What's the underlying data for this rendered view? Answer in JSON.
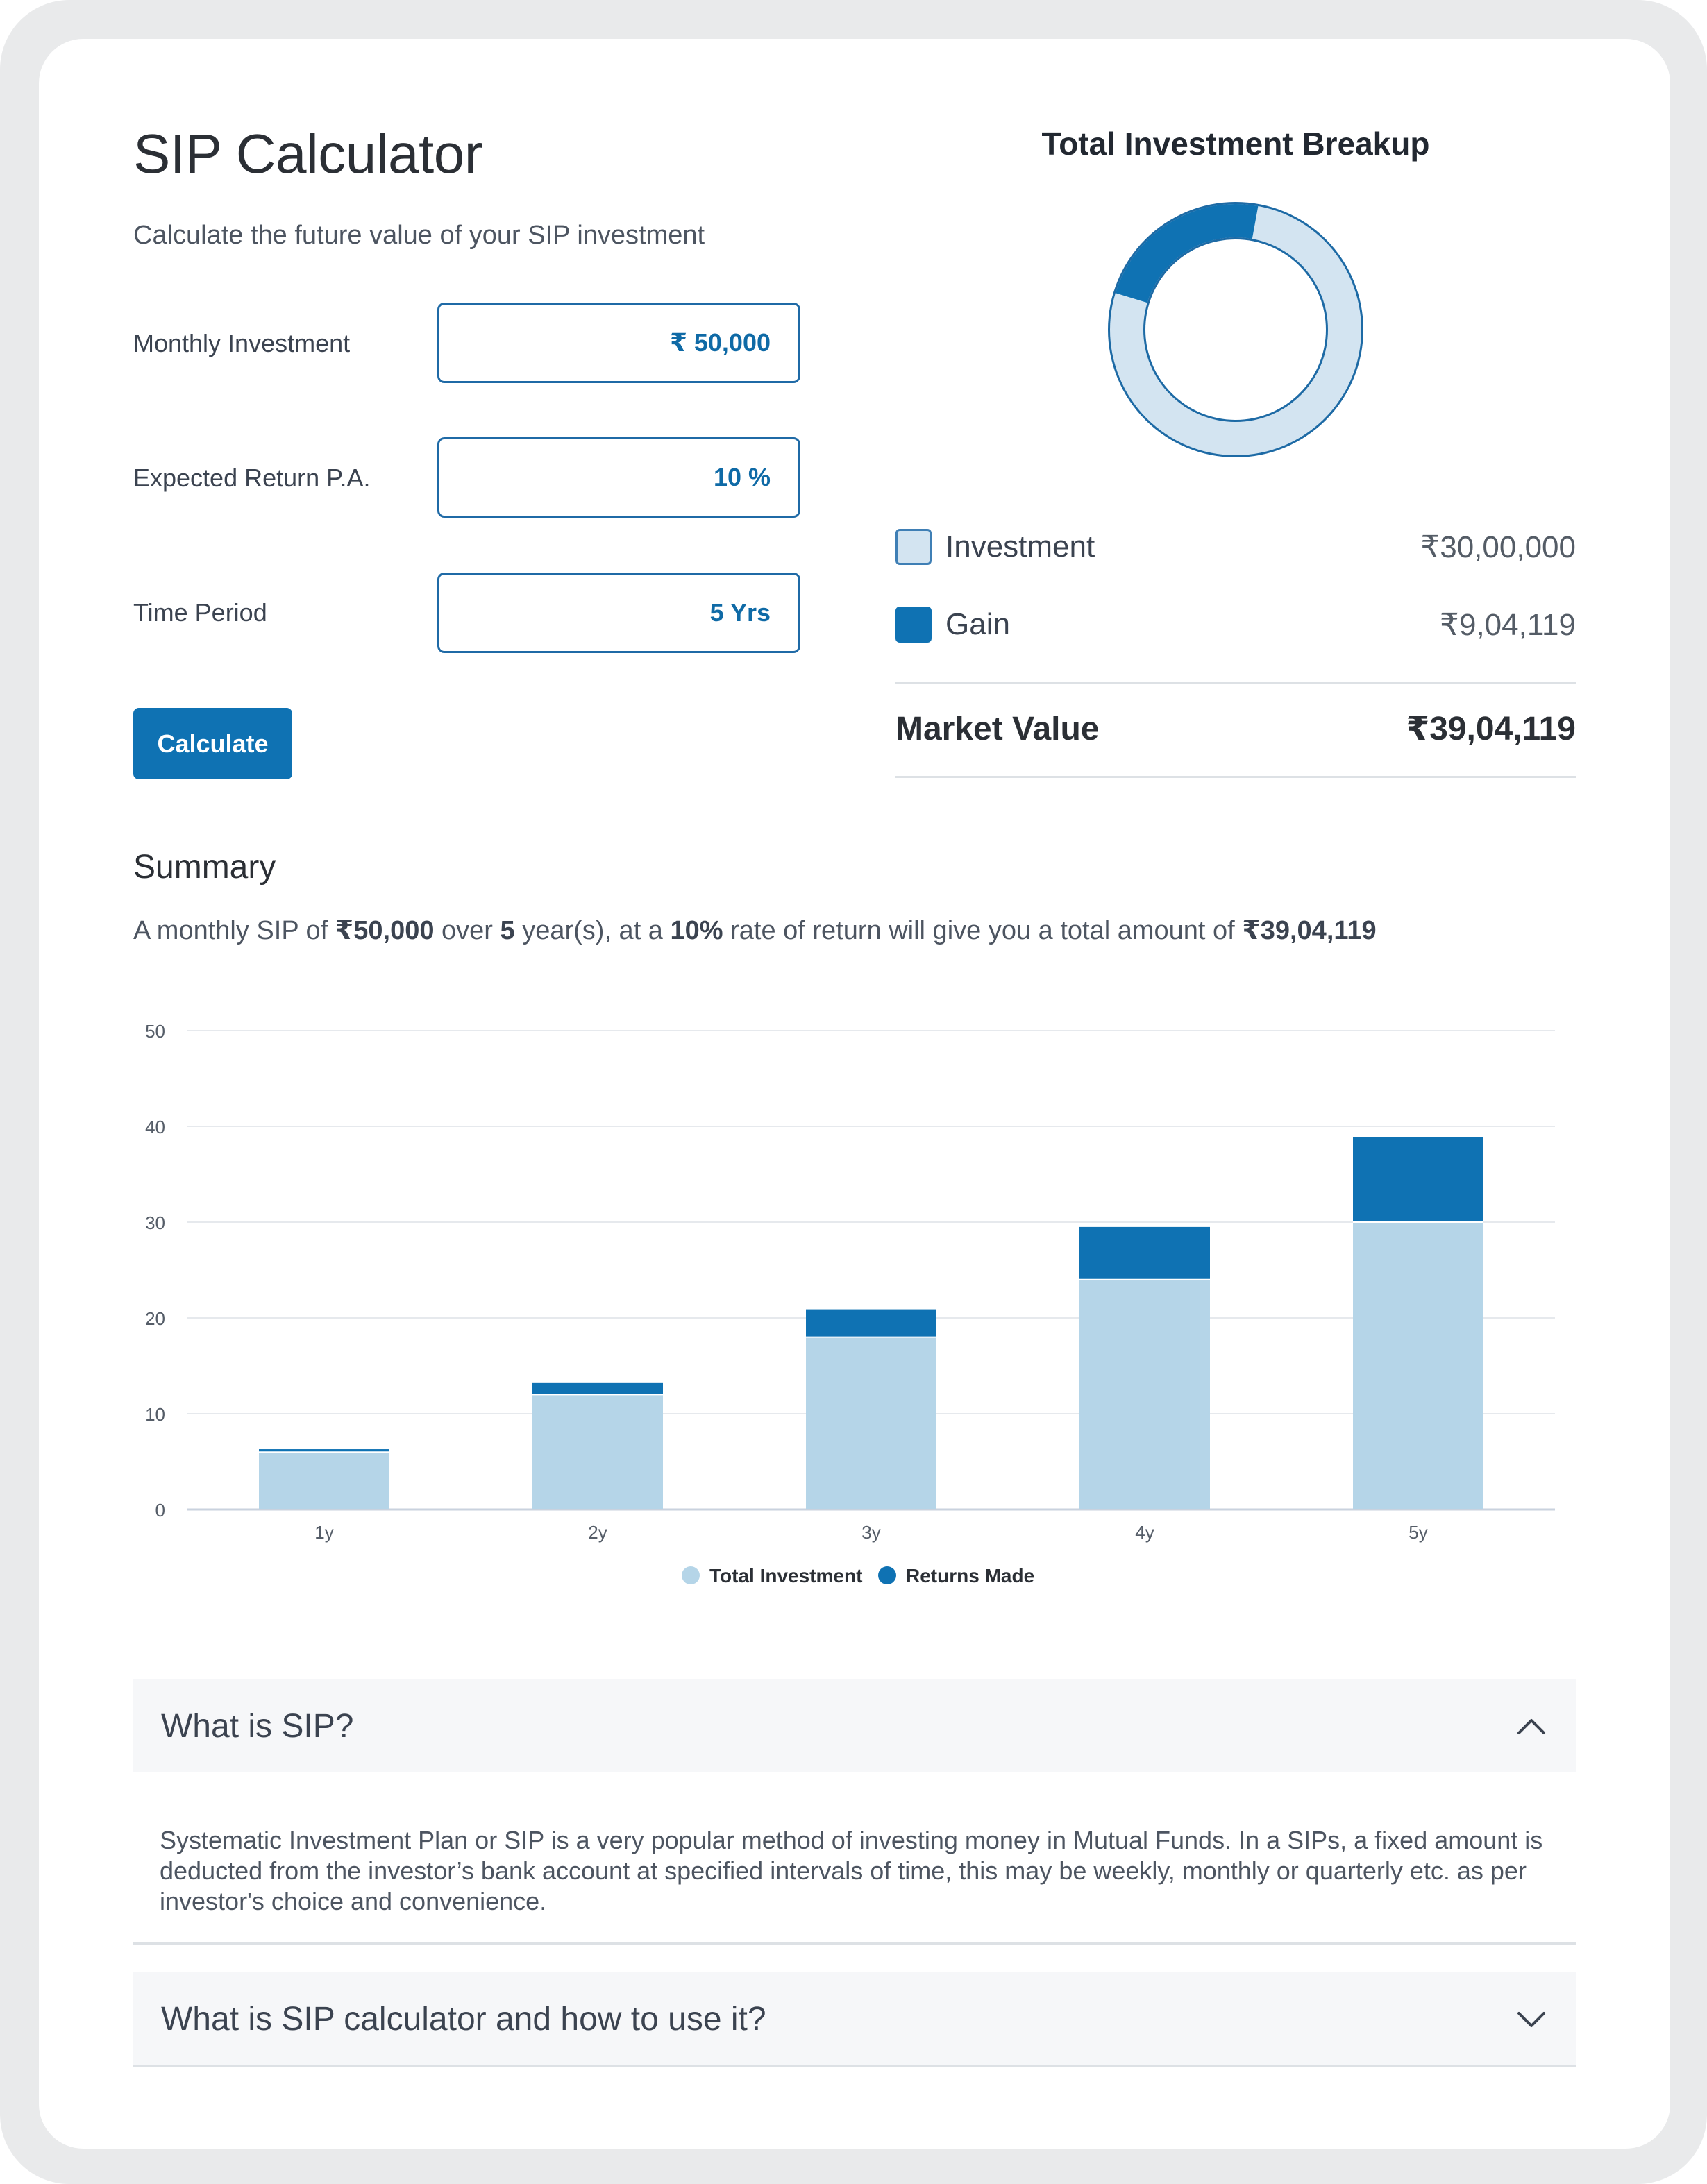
{
  "calculator": {
    "title": "SIP Calculator",
    "subtitle": "Calculate the future value of your SIP investment",
    "fields": [
      {
        "label": "Monthly Investment",
        "value": "₹ 50,000"
      },
      {
        "label": "Expected Return P.A.",
        "value": "10 %"
      },
      {
        "label": "Time Period",
        "value": "5 Yrs"
      }
    ],
    "calculate_label": "Calculate"
  },
  "breakup": {
    "title": "Total Investment Breakup",
    "investment_label": "Investment",
    "investment_value": "₹30,00,000",
    "gain_label": "Gain",
    "gain_value": "₹9,04,119",
    "market_value_label": "Market Value",
    "market_value": "₹39,04,119",
    "donut_gain_fraction": 0.2316
  },
  "summary": {
    "title": "Summary",
    "text_1": "A monthly SIP of ",
    "amount": "₹50,000",
    "text_2": " over ",
    "years": "5",
    "text_3": " year(s), at a ",
    "rate": "10%",
    "text_4": " rate of return will give you a total amount of ",
    "total": "₹39,04,119"
  },
  "colors": {
    "primary": "#0f72b3",
    "investment": "#b5d5e8",
    "donut_light": "#d3e4f1"
  },
  "chart_data": {
    "type": "bar",
    "stacked": true,
    "categories": [
      "1y",
      "2y",
      "3y",
      "4y",
      "5y"
    ],
    "series": [
      {
        "name": "Total Investment",
        "values": [
          6,
          12,
          18,
          24,
          30
        ]
      },
      {
        "name": "Returns Made",
        "values": [
          0.3,
          1.2,
          2.9,
          5.5,
          8.9
        ]
      }
    ],
    "yticks": [
      "0",
      "10",
      "20",
      "30",
      "40",
      "50"
    ],
    "ylim": [
      0,
      50
    ],
    "grid": true,
    "legend": "bottom-center"
  },
  "faq": [
    {
      "question": "What is SIP?",
      "expanded": true,
      "answer": "Systematic Investment Plan or SIP is a very popular method of investing money in Mutual Funds. In a SIPs, a fixed amount is deducted from the investor’s bank account at specified intervals of time, this may be weekly, monthly or quarterly etc. as per investor's choice and convenience."
    },
    {
      "question": "What is SIP calculator and how to use it?",
      "expanded": false
    }
  ]
}
